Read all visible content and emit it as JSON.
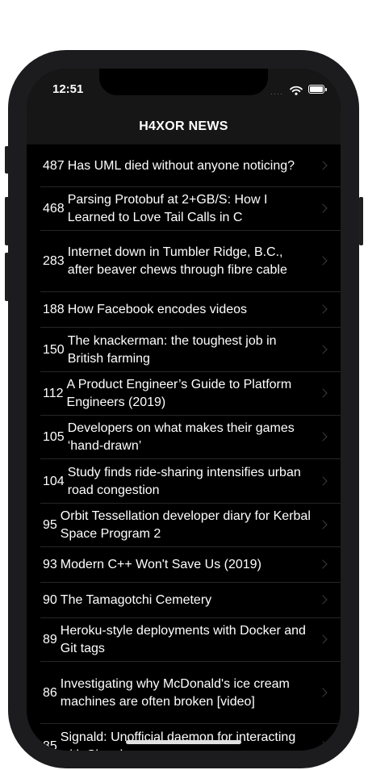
{
  "status_bar": {
    "time": "12:51"
  },
  "nav": {
    "title": "H4XOR NEWS"
  },
  "stories": [
    {
      "points": "487",
      "title": "Has UML died without anyone noticing?"
    },
    {
      "points": "468",
      "title": "Parsing Protobuf at 2+GB/S: How I Learned to Love Tail Calls in C"
    },
    {
      "points": "283",
      "title": "Internet down in Tumbler Ridge, B.C., after beaver chews through fibre cable"
    },
    {
      "points": "188",
      "title": "How Facebook encodes videos"
    },
    {
      "points": "150",
      "title": "The knackerman: the toughest job in British farming"
    },
    {
      "points": "112",
      "title": "A Product Engineer’s Guide to Platform Engineers (2019)"
    },
    {
      "points": "105",
      "title": "Developers on what makes their games ‘hand-drawn’"
    },
    {
      "points": "104",
      "title": "Study finds ride-sharing intensifies urban road congestion"
    },
    {
      "points": "95",
      "title": "Orbit Tessellation developer diary for Kerbal Space Program 2"
    },
    {
      "points": "93",
      "title": "Modern C++ Won't Save Us (2019)"
    },
    {
      "points": "90",
      "title": "The Tamagotchi Cemetery"
    },
    {
      "points": "89",
      "title": "Heroku-style deployments with Docker and Git tags"
    },
    {
      "points": "86",
      "title": "Investigating why McDonald's ice cream machines are often broken [video]"
    },
    {
      "points": "85",
      "title": "Signald: Unofficial daemon for interacting with Signal"
    }
  ]
}
